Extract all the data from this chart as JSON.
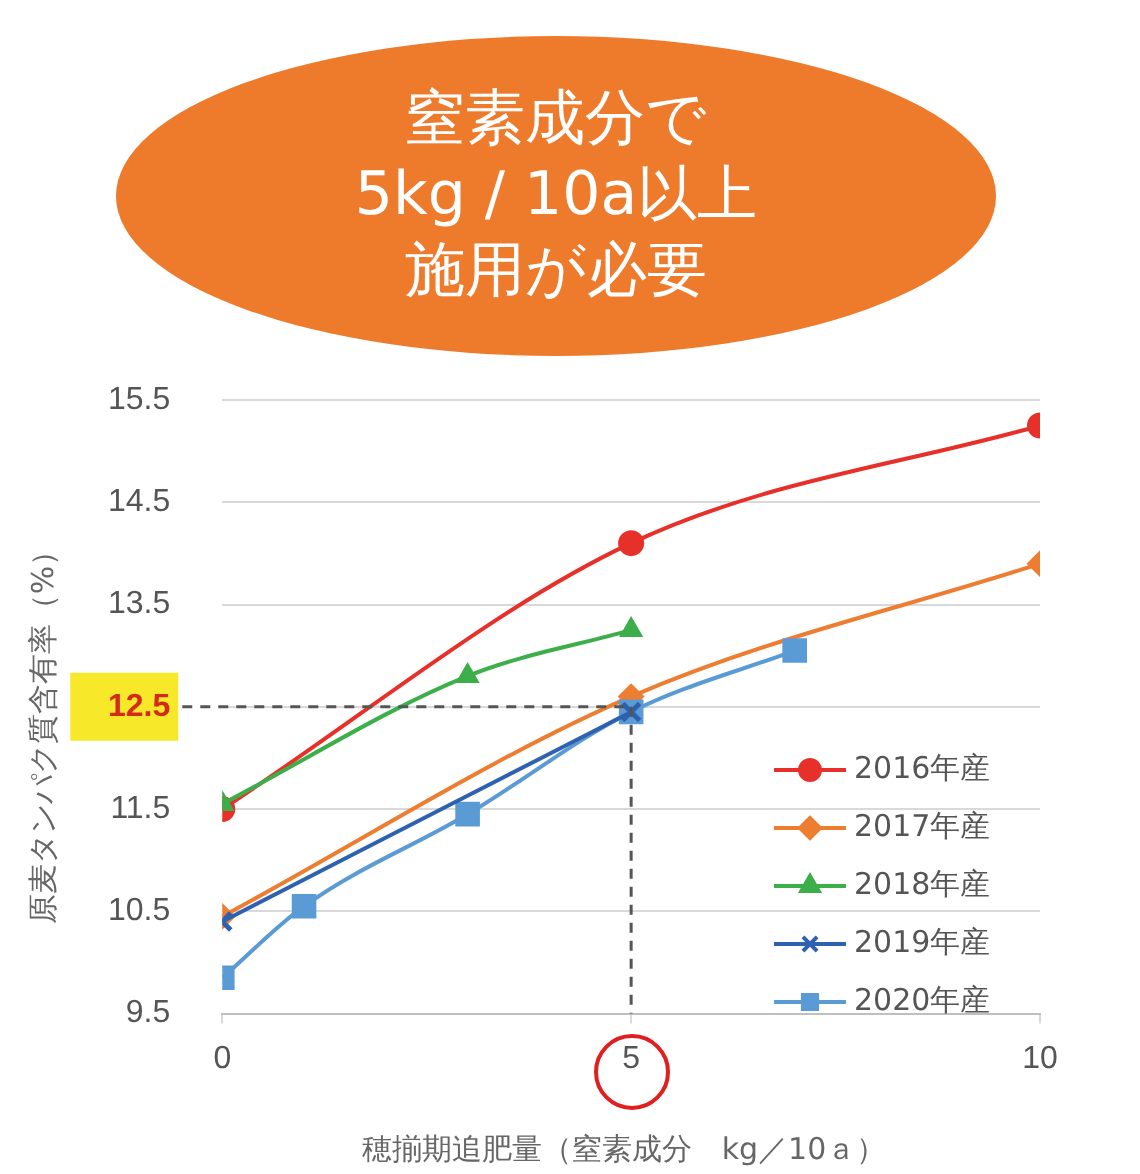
{
  "chart_data": {
    "type": "line",
    "title": "窒素成分で5kg / 10a以上施用が必要",
    "xlabel": "穂揃期追肥量（窒素成分　kg／10ａ）",
    "ylabel": "原麦タンパク質含有率（%）",
    "xlim": [
      0,
      10
    ],
    "xticks": [
      0,
      5,
      10
    ],
    "ylim": [
      9.5,
      15.5
    ],
    "yticks": [
      9.5,
      10.5,
      11.5,
      12.5,
      13.5,
      14.5,
      15.5
    ],
    "grid": "y",
    "legend": "bottom right",
    "series": [
      {
        "name": "2016年産",
        "color": "#e8302a",
        "marker": "circle",
        "x": [
          0,
          5,
          10
        ],
        "values": [
          11.5,
          14.1,
          15.25
        ]
      },
      {
        "name": "2017年産",
        "color": "#ed7d31",
        "marker": "diamond",
        "x": [
          0,
          5,
          10
        ],
        "values": [
          10.45,
          12.6,
          13.9
        ]
      },
      {
        "name": "2018年産",
        "color": "#3cae4a",
        "marker": "triangle",
        "x": [
          0,
          3,
          5
        ],
        "values": [
          11.55,
          12.8,
          13.25
        ]
      },
      {
        "name": "2019年産",
        "color": "#2e62b0",
        "marker": "cross",
        "x": [
          0,
          5
        ],
        "values": [
          10.4,
          12.45
        ]
      },
      {
        "name": "2020年産",
        "color": "#5b9bd5",
        "marker": "square",
        "x": [
          0,
          1,
          3,
          5,
          7
        ],
        "values": [
          9.85,
          10.55,
          11.45,
          12.45,
          13.05
        ]
      }
    ],
    "ref_lines": [
      {
        "axis": "y",
        "value": 12.5,
        "color": "#555555",
        "line_style": "dashed"
      },
      {
        "axis": "x",
        "value": 5,
        "color": "#555555",
        "line_style": "dashed"
      }
    ]
  }
}
